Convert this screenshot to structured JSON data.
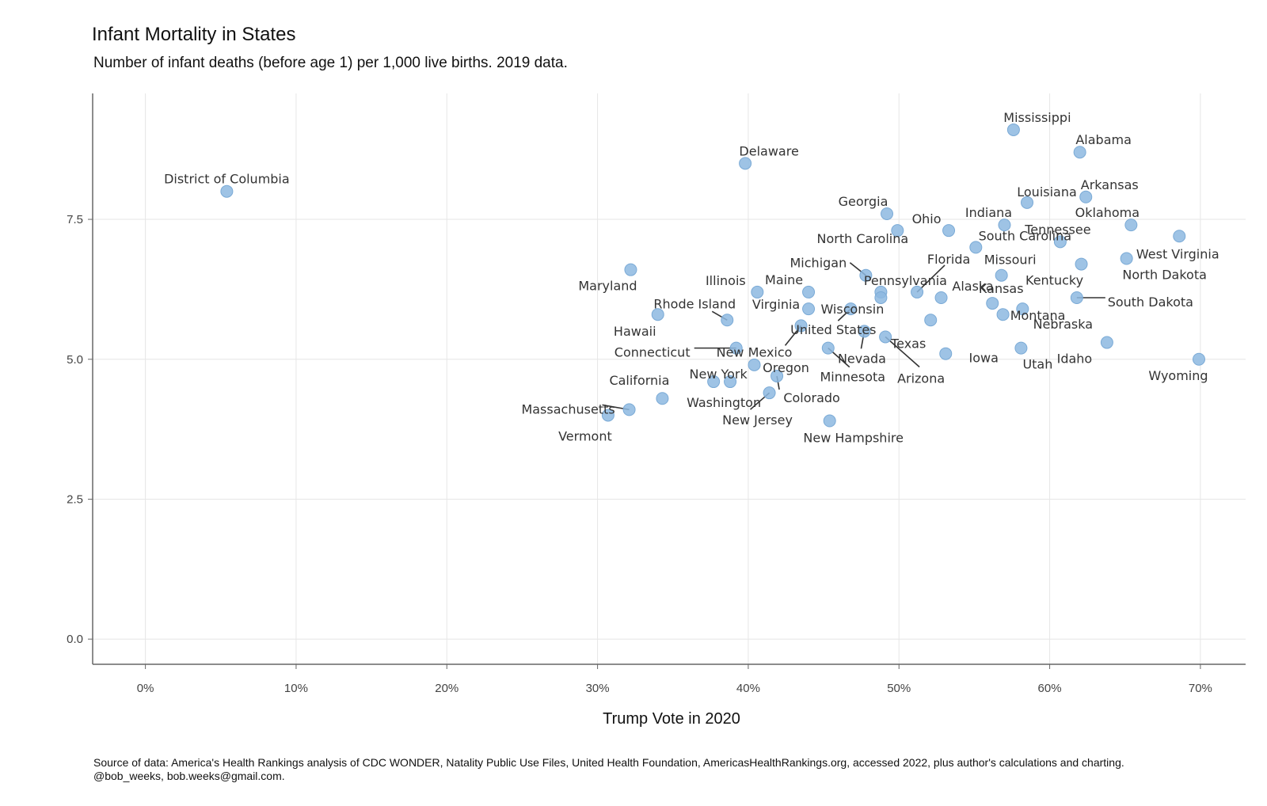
{
  "chart_data": {
    "type": "scatter",
    "title": "Infant Mortality in States",
    "subtitle": "Number of infant deaths (before age 1) per 1,000 live births. 2019 data.",
    "xlabel": "Trump Vote in 2020",
    "ylabel": "",
    "caption": "Source of data: America's Health Rankings analysis of CDC WONDER, Natality Public Use Files, United Health Foundation, AmericasHealthRankings.org, accessed 2022, plus author's calculations and charting. @bob_weeks, bob.weeks@gmail.com.",
    "xlim": [
      -3.5,
      73
    ],
    "ylim": [
      -0.45,
      9.75
    ],
    "x_ticks": [
      0,
      10,
      20,
      30,
      40,
      50,
      60,
      70
    ],
    "x_tick_labels": [
      "0%",
      "10%",
      "20%",
      "30%",
      "40%",
      "50%",
      "60%",
      "70%"
    ],
    "y_ticks": [
      0,
      2.5,
      5,
      7.5
    ],
    "y_tick_labels": [
      "0.0",
      "2.5",
      "5.0",
      "7.5"
    ],
    "grid": true,
    "point_color": "#8db8e0",
    "points": [
      {
        "label": "District of Columbia",
        "x": 5.4,
        "y": 8.0
      },
      {
        "label": "Delaware",
        "x": 39.8,
        "y": 8.5
      },
      {
        "label": "Mississippi",
        "x": 57.6,
        "y": 9.1
      },
      {
        "label": "Alabama",
        "x": 62.0,
        "y": 8.7
      },
      {
        "label": "Arkansas",
        "x": 62.4,
        "y": 7.9
      },
      {
        "label": "Louisiana",
        "x": 58.5,
        "y": 7.8
      },
      {
        "label": "Georgia",
        "x": 49.2,
        "y": 7.6
      },
      {
        "label": "Oklahoma",
        "x": 65.4,
        "y": 7.4
      },
      {
        "label": "Indiana",
        "x": 57.0,
        "y": 7.4
      },
      {
        "label": "Ohio",
        "x": 53.3,
        "y": 7.3
      },
      {
        "label": "North Carolina",
        "x": 49.9,
        "y": 7.3
      },
      {
        "label": "West Virginia",
        "x": 68.6,
        "y": 7.2
      },
      {
        "label": "South Carolina",
        "x": 55.1,
        "y": 7.0
      },
      {
        "label": "Tennessee",
        "x": 60.7,
        "y": 7.1
      },
      {
        "label": "North Dakota",
        "x": 65.1,
        "y": 6.8
      },
      {
        "label": "Kentucky",
        "x": 62.1,
        "y": 6.7
      },
      {
        "label": "Maryland",
        "x": 32.2,
        "y": 6.6
      },
      {
        "label": "Michigan",
        "x": 47.8,
        "y": 6.5
      },
      {
        "label": "Missouri",
        "x": 56.8,
        "y": 6.5
      },
      {
        "label": "Illinois",
        "x": 40.6,
        "y": 6.2
      },
      {
        "label": "Maine",
        "x": 44.0,
        "y": 6.2
      },
      {
        "label": "Pennsylvania",
        "x": 48.8,
        "y": 6.2
      },
      {
        "label": "Florida",
        "x": 51.2,
        "y": 6.2
      },
      {
        "label": "South Dakota",
        "x": 61.8,
        "y": 6.1
      },
      {
        "label": "Wisconsin",
        "x": 48.8,
        "y": 6.1
      },
      {
        "label": "Kansas",
        "x": 56.2,
        "y": 6.0
      },
      {
        "label": "Virginia",
        "x": 44.0,
        "y": 5.9
      },
      {
        "label": "Alaska",
        "x": 52.8,
        "y": 6.1
      },
      {
        "label": "Nebraska",
        "x": 58.2,
        "y": 5.9
      },
      {
        "label": "Hawaii",
        "x": 34.0,
        "y": 5.8
      },
      {
        "label": "United States",
        "x": 46.8,
        "y": 5.9
      },
      {
        "label": "Rhode Island",
        "x": 38.6,
        "y": 5.7
      },
      {
        "label": "New Mexico",
        "x": 43.5,
        "y": 5.6
      },
      {
        "label": "Texas",
        "x": 52.1,
        "y": 5.7
      },
      {
        "label": "Nevada",
        "x": 47.7,
        "y": 5.5
      },
      {
        "label": "Arizona",
        "x": 49.1,
        "y": 5.4
      },
      {
        "label": "Idaho",
        "x": 63.8,
        "y": 5.3
      },
      {
        "label": "Connecticut",
        "x": 39.2,
        "y": 5.2
      },
      {
        "label": "Minnesota",
        "x": 45.3,
        "y": 5.2
      },
      {
        "label": "Montana",
        "x": 56.9,
        "y": 5.8
      },
      {
        "label": "Utah",
        "x": 58.1,
        "y": 5.2
      },
      {
        "label": "Iowa",
        "x": 53.1,
        "y": 5.1
      },
      {
        "label": "Wyoming",
        "x": 69.9,
        "y": 5.0
      },
      {
        "label": "Oregon",
        "x": 40.4,
        "y": 4.9
      },
      {
        "label": "Colorado",
        "x": 41.9,
        "y": 4.7
      },
      {
        "label": "New York",
        "x": 37.7,
        "y": 4.6
      },
      {
        "label": "Washington",
        "x": 38.8,
        "y": 4.6
      },
      {
        "label": "New Jersey",
        "x": 41.4,
        "y": 4.4
      },
      {
        "label": "California",
        "x": 34.3,
        "y": 4.3
      },
      {
        "label": "Massachusetts",
        "x": 32.1,
        "y": 4.1
      },
      {
        "label": "Vermont",
        "x": 30.7,
        "y": 4.0
      },
      {
        "label": "New Hampshire",
        "x": 45.4,
        "y": 3.9
      }
    ]
  }
}
